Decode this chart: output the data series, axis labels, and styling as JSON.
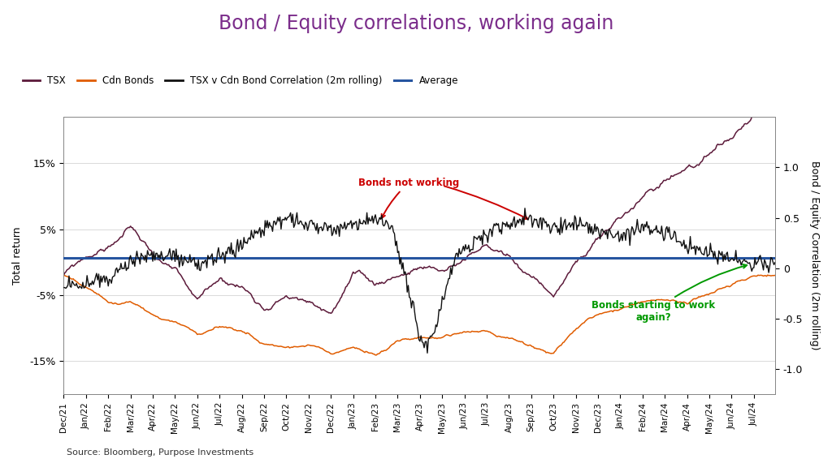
{
  "title": "Bond / Equity correlations, working again",
  "title_color": "#7B2D8B",
  "title_fontsize": 17,
  "ylabel_left": "Total return",
  "ylabel_right": "Bond / Equity Correlation (2m rolling)",
  "source_text": "Source: Bloomberg, Purpose Investments",
  "tsx_color": "#5C1A3A",
  "bonds_color": "#E05C00",
  "corr_color": "#111111",
  "avg_color": "#2655A0",
  "avg_value": 0.1,
  "annotation1_text": "Bonds not working",
  "annotation1_color": "#CC0000",
  "annotation2_text": "Bonds starting to work\nagain?",
  "annotation2_color": "#009900",
  "x_labels": [
    "Dec/21",
    "Jan/22",
    "Feb/22",
    "Mar/22",
    "Apr/22",
    "May/22",
    "Jun/22",
    "Jul/22",
    "Aug/22",
    "Sep/22",
    "Oct/22",
    "Nov/22",
    "Dec/22",
    "Jan/23",
    "Feb/23",
    "Mar/23",
    "Apr/23",
    "May/23",
    "Jun/23",
    "Jul/23",
    "Aug/23",
    "Sep/23",
    "Oct/23",
    "Nov/23",
    "Dec/23",
    "Jan/24",
    "Feb/24",
    "Mar/24",
    "Apr/24",
    "May/24",
    "Jun/24",
    "Jul/24"
  ],
  "ylim_left": [
    -20,
    22
  ],
  "ylim_right": [
    -1.25,
    1.5
  ],
  "background_color": "#FFFFFF",
  "plot_bg_color": "#FFFFFF"
}
